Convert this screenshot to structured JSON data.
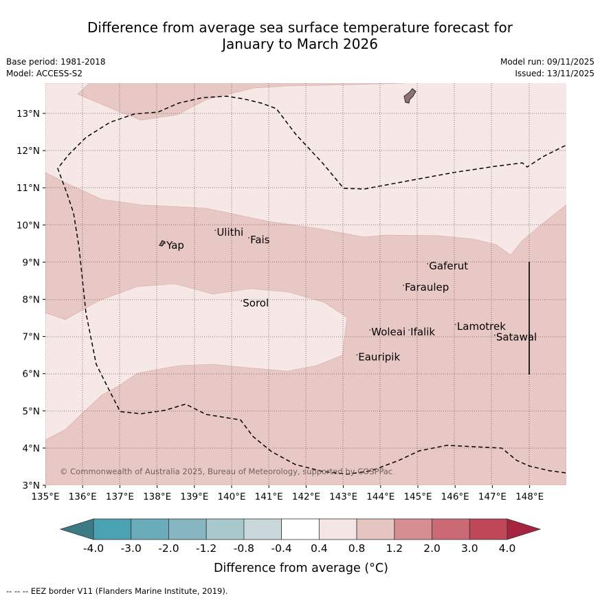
{
  "title_line1": "Difference from average sea surface temperature forecast for",
  "title_line2": "January to March 2026",
  "base_period": "Base period: 1981-2018",
  "model": "Model: ACCESS-S2",
  "model_run": "Model run: 09/11/2025",
  "issued": "Issued: 13/11/2025",
  "copyright": "© Commonwealth of Australia 2025, Bureau of Meteorology, supported by COSPPac",
  "footnote": "--  --  -- EEZ border V11 (Flanders Marine Institute, 2019).",
  "map": {
    "lon_range": [
      135,
      149
    ],
    "lat_range": [
      3,
      13.8
    ],
    "lon_ticks": [
      "135°E",
      "136°E",
      "137°E",
      "138°E",
      "139°E",
      "140°E",
      "141°E",
      "142°E",
      "143°E",
      "144°E",
      "145°E",
      "146°E",
      "147°E",
      "148°E"
    ],
    "lat_ticks": [
      "3°N",
      "4°N",
      "5°N",
      "6°N",
      "7°N",
      "8°N",
      "9°N",
      "10°N",
      "11°N",
      "12°N",
      "13°N"
    ],
    "places": [
      {
        "name": "Yap",
        "lon": 138.25,
        "lat": 9.45
      },
      {
        "name": "Ulithi",
        "lon": 139.6,
        "lat": 9.8
      },
      {
        "name": "Fais",
        "lon": 140.5,
        "lat": 9.6
      },
      {
        "name": "Sorol",
        "lon": 140.3,
        "lat": 7.9
      },
      {
        "name": "Gaferut",
        "lon": 145.3,
        "lat": 8.9
      },
      {
        "name": "Faraulep",
        "lon": 144.65,
        "lat": 8.32
      },
      {
        "name": "Woleai",
        "lon": 143.75,
        "lat": 7.12
      },
      {
        "name": "Ifalik",
        "lon": 144.8,
        "lat": 7.12
      },
      {
        "name": "Lamotrek",
        "lon": 146.05,
        "lat": 7.27
      },
      {
        "name": "Satawal",
        "lon": 147.1,
        "lat": 6.98
      },
      {
        "name": "Eauripik",
        "lon": 143.4,
        "lat": 6.45
      }
    ]
  },
  "colorbar": {
    "label": "Difference from average (°C)",
    "tick_labels": [
      "-4.0",
      "-3.0",
      "-2.0",
      "-1.2",
      "-0.8",
      "-0.4",
      "0.4",
      "0.8",
      "1.2",
      "2.0",
      "3.0",
      "4.0"
    ],
    "colors": [
      "#3c7b86",
      "#49a1b1",
      "#6aacba",
      "#87b6c2",
      "#a9c8ce",
      "#c8d8db",
      "#ffffff",
      "#f5e6e5",
      "#e6c6c2",
      "#d78e93",
      "#cb6a74",
      "#bf4757",
      "#a6243f"
    ]
  }
}
